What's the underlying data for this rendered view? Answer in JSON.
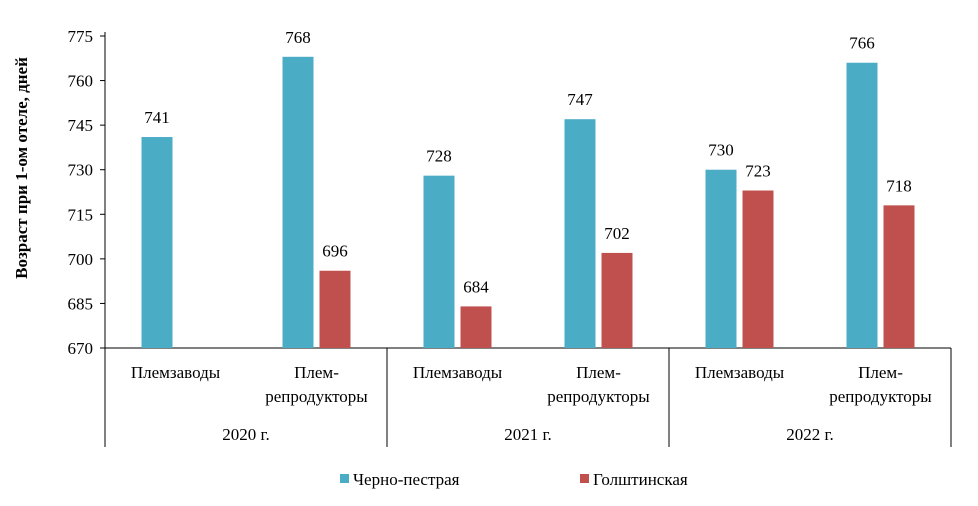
{
  "chart_data": {
    "type": "bar",
    "ylabel": "Возраст  при  1-ом отеле, дней",
    "ylim": [
      670,
      775
    ],
    "yticks": [
      670,
      685,
      700,
      715,
      730,
      745,
      760,
      775
    ],
    "grid": false,
    "legend_position": "bottom",
    "groups": [
      {
        "label": "2020  г.",
        "categories": [
          "Племзаводы",
          "Плем-\nрепродукторы"
        ]
      },
      {
        "label": "2021  г.",
        "categories": [
          "Племзаводы",
          "Плем-\nрепродукторы"
        ]
      },
      {
        "label": "2022  г.",
        "categories": [
          "Племзаводы",
          "Плем-\nрепродукторы"
        ]
      }
    ],
    "series": [
      {
        "name": "Черно-пестрая",
        "color": "#4BACC6",
        "values": [
          741,
          768,
          728,
          747,
          730,
          766
        ]
      },
      {
        "name": "Голштинская",
        "color": "#C0504D",
        "values": [
          null,
          696,
          684,
          702,
          723,
          718
        ]
      }
    ]
  }
}
